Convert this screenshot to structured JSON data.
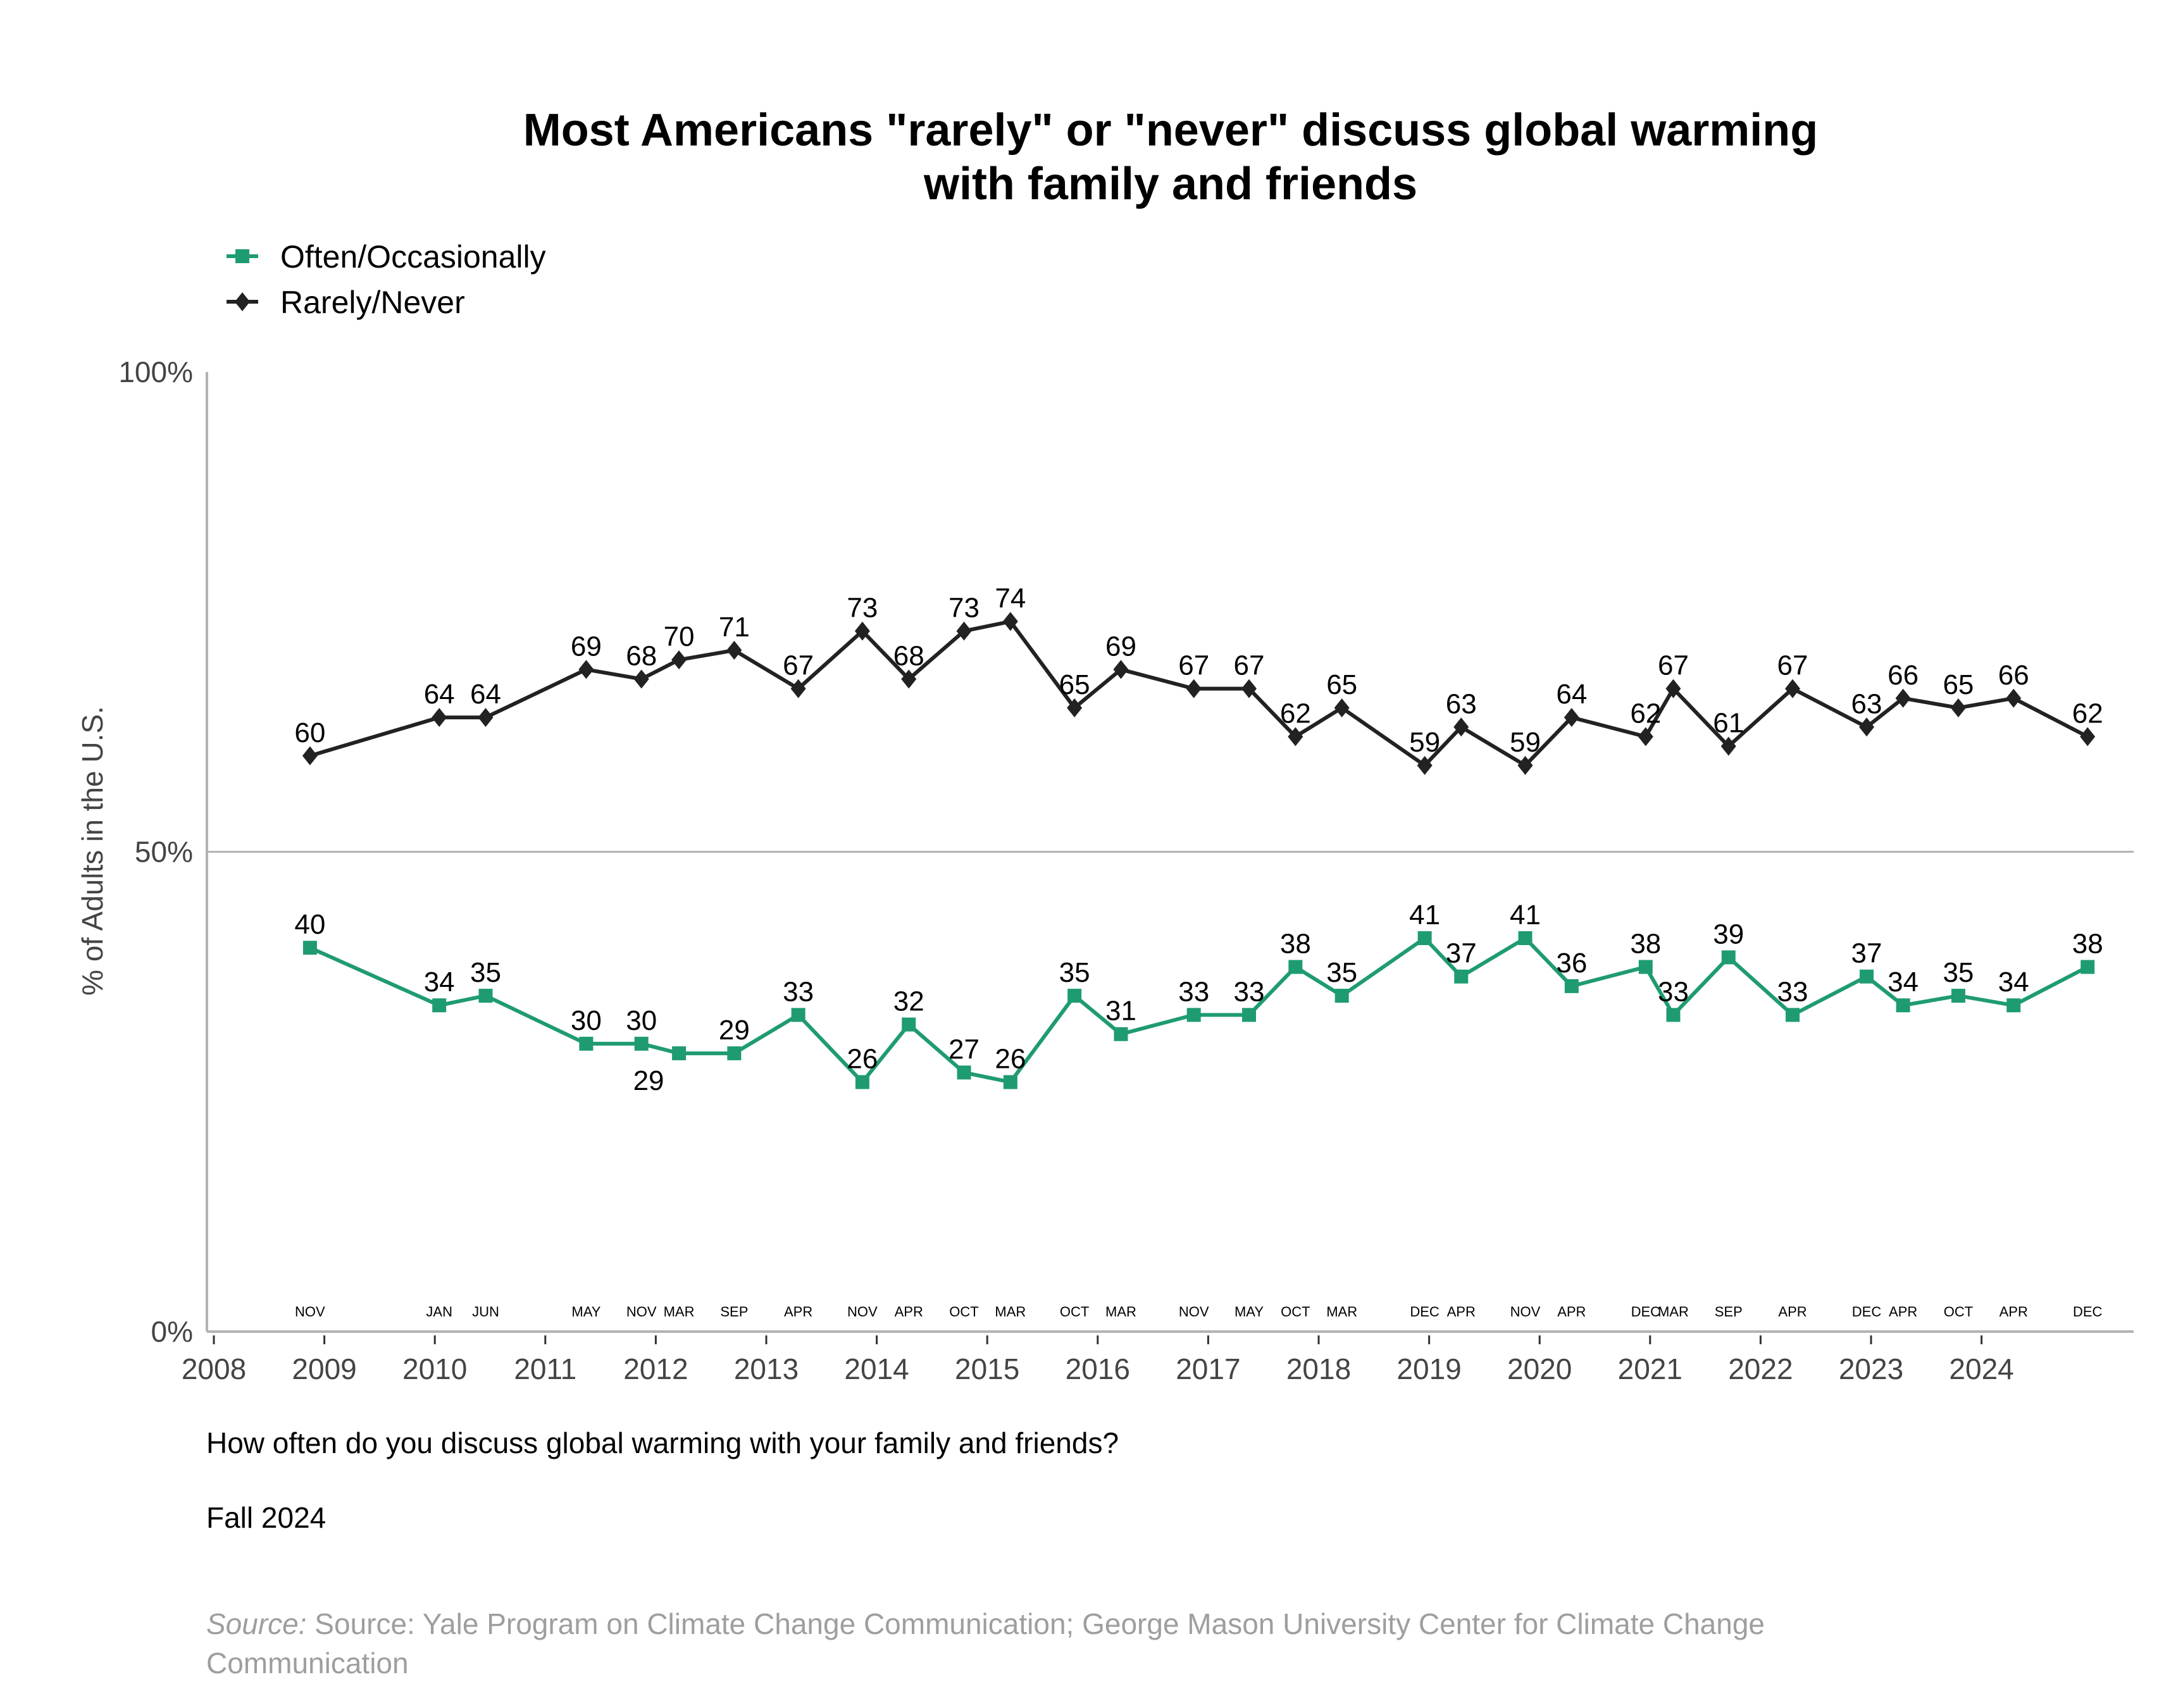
{
  "chart_data": {
    "type": "line",
    "title": "Most Americans \"rarely\" or \"never\" discuss global warming",
    "title_line2": "with family and friends",
    "xlabel": "",
    "ylabel": "% of Adults in the U.S.",
    "ylim": [
      0,
      100
    ],
    "yticks": [
      "0%",
      "50%",
      "100%"
    ],
    "ytick_values": [
      0,
      50,
      100
    ],
    "xlim": [
      2008,
      2025.3
    ],
    "xticks": [
      "2008",
      "2009",
      "2010",
      "2011",
      "2012",
      "2013",
      "2014",
      "2015",
      "2016",
      "2017",
      "2018",
      "2019",
      "2020",
      "2021",
      "2022",
      "2023",
      "2024"
    ],
    "legend_position": "top-left",
    "gridlines": [
      50
    ],
    "x": [
      2008.87,
      2010.04,
      2010.46,
      2011.37,
      2011.87,
      2012.21,
      2012.71,
      2013.29,
      2013.87,
      2014.29,
      2014.79,
      2015.21,
      2015.79,
      2016.21,
      2016.87,
      2017.37,
      2017.79,
      2018.21,
      2018.96,
      2019.29,
      2019.87,
      2020.29,
      2020.96,
      2021.21,
      2021.71,
      2022.29,
      2022.96,
      2023.29,
      2023.79,
      2024.29,
      2024.96
    ],
    "month_labels": [
      "NOV",
      "JAN",
      "JUN",
      "MAY",
      "NOV",
      "MAR",
      "SEP",
      "APR",
      "NOV",
      "APR",
      "OCT",
      "MAR",
      "OCT",
      "MAR",
      "NOV",
      "MAY",
      "OCT",
      "MAR",
      "DEC",
      "APR",
      "NOV",
      "APR",
      "DEC",
      "MAR",
      "SEP",
      "APR",
      "DEC",
      "APR",
      "OCT",
      "APR",
      "DEC"
    ],
    "series": [
      {
        "name": "Often/Occasionally",
        "color": "#1f9b72",
        "marker": "square",
        "values": [
          40,
          34,
          35,
          30,
          30,
          29,
          29,
          33,
          26,
          32,
          27,
          26,
          35,
          31,
          33,
          33,
          38,
          35,
          41,
          37,
          41,
          36,
          38,
          33,
          39,
          33,
          37,
          34,
          35,
          34,
          38
        ],
        "label_below": [
          5
        ]
      },
      {
        "name": "Rarely/Never",
        "color": "#222222",
        "marker": "diamond",
        "values": [
          60,
          64,
          64,
          69,
          68,
          70,
          71,
          67,
          73,
          68,
          73,
          74,
          65,
          69,
          67,
          67,
          62,
          65,
          59,
          63,
          59,
          64,
          62,
          67,
          61,
          67,
          63,
          66,
          65,
          66,
          62
        ]
      }
    ]
  },
  "footer": {
    "question": "How often do you discuss global warming with your family and friends?",
    "date": "Fall 2024",
    "source_prefix": "Source:",
    "source_line1": " Source: Yale Program on Climate Change Communication; George Mason University Center for Climate Change",
    "source_line2": "Communication"
  }
}
